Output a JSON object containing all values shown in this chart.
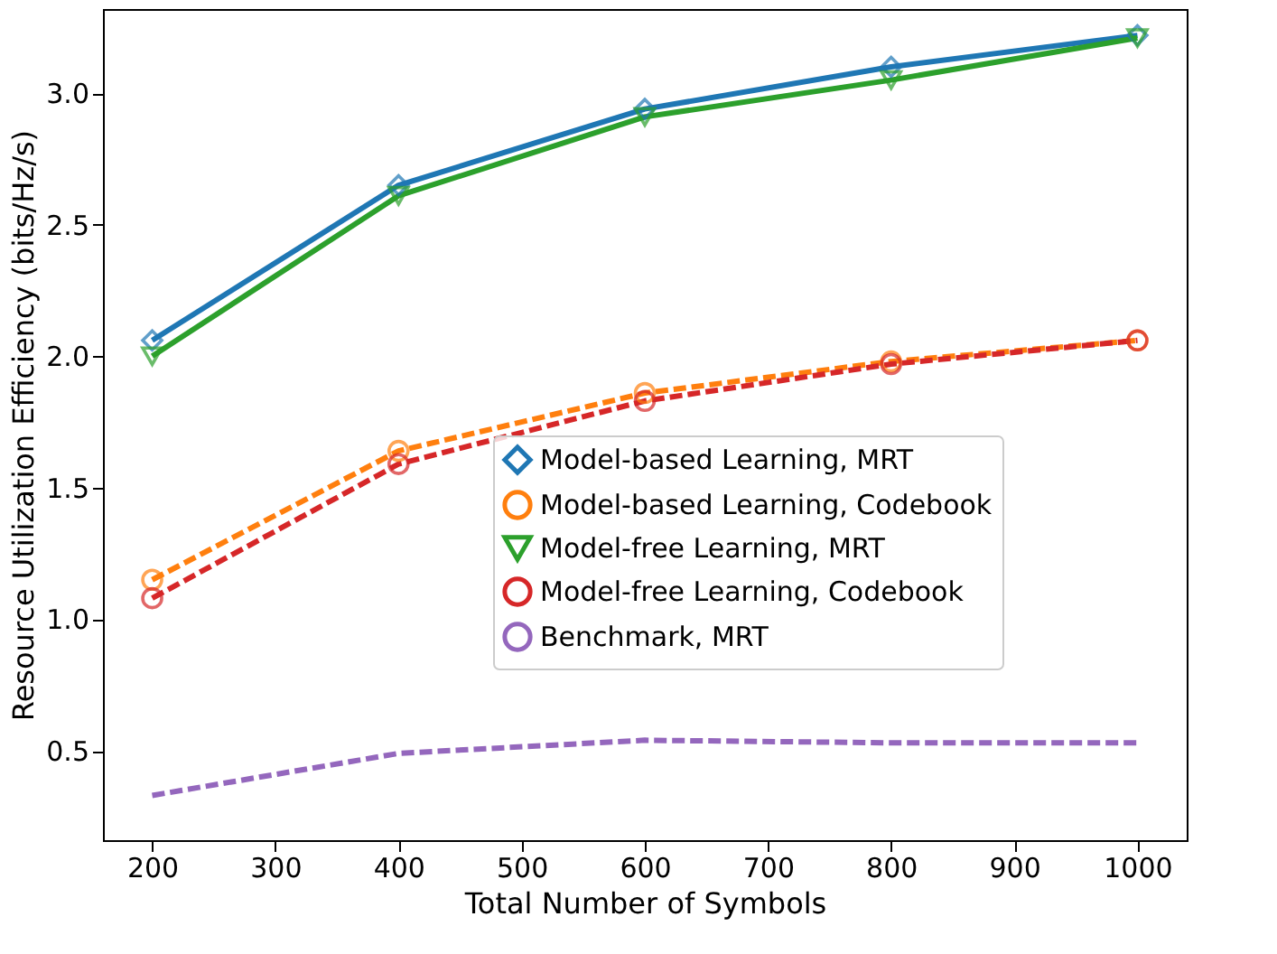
{
  "chart_data": {
    "type": "line",
    "xlabel": "Total Number of Symbols",
    "ylabel": "Resource Utilization Efficiency (bits/Hz/s)",
    "x": [
      200,
      400,
      600,
      800,
      1000
    ],
    "series": [
      {
        "name": "Model-based Learning, MRT",
        "color": "#1f77b4",
        "marker": "diamond",
        "line_style": "solid",
        "values": [
          2.06,
          2.65,
          2.94,
          3.1,
          3.22
        ]
      },
      {
        "name": "Model-based Learning, Codebook",
        "color": "#ff7f0e",
        "marker": "circle",
        "line_style": "dashed",
        "values": [
          1.15,
          1.64,
          1.86,
          1.98,
          2.06
        ]
      },
      {
        "name": "Model-free Learning, MRT",
        "color": "#2ca02c",
        "marker": "triangle",
        "line_style": "solid",
        "values": [
          2.0,
          2.61,
          2.91,
          3.05,
          3.21
        ]
      },
      {
        "name": "Model-free Learning, Codebook",
        "color": "#d62728",
        "marker": "circle",
        "line_style": "dashed",
        "values": [
          1.08,
          1.59,
          1.83,
          1.97,
          2.06
        ]
      },
      {
        "name": "Benchmark, MRT",
        "color": "#9467bd",
        "marker": "none",
        "line_style": "dashed",
        "values": [
          0.33,
          0.49,
          0.54,
          0.53,
          0.53
        ]
      }
    ],
    "xlim": [
      160,
      1040
    ],
    "xticks": [
      200,
      300,
      400,
      500,
      600,
      700,
      800,
      900,
      1000
    ],
    "ylim": [
      0.16,
      3.32
    ],
    "yticks": [
      0.5,
      {
        "value": 1,
        "label": "1.0"
      },
      1.5,
      {
        "value": 2,
        "label": "2.0"
      },
      2.5,
      {
        "value": 3,
        "label": "3.0"
      }
    ],
    "legend": "bottom right",
    "grid": false
  }
}
